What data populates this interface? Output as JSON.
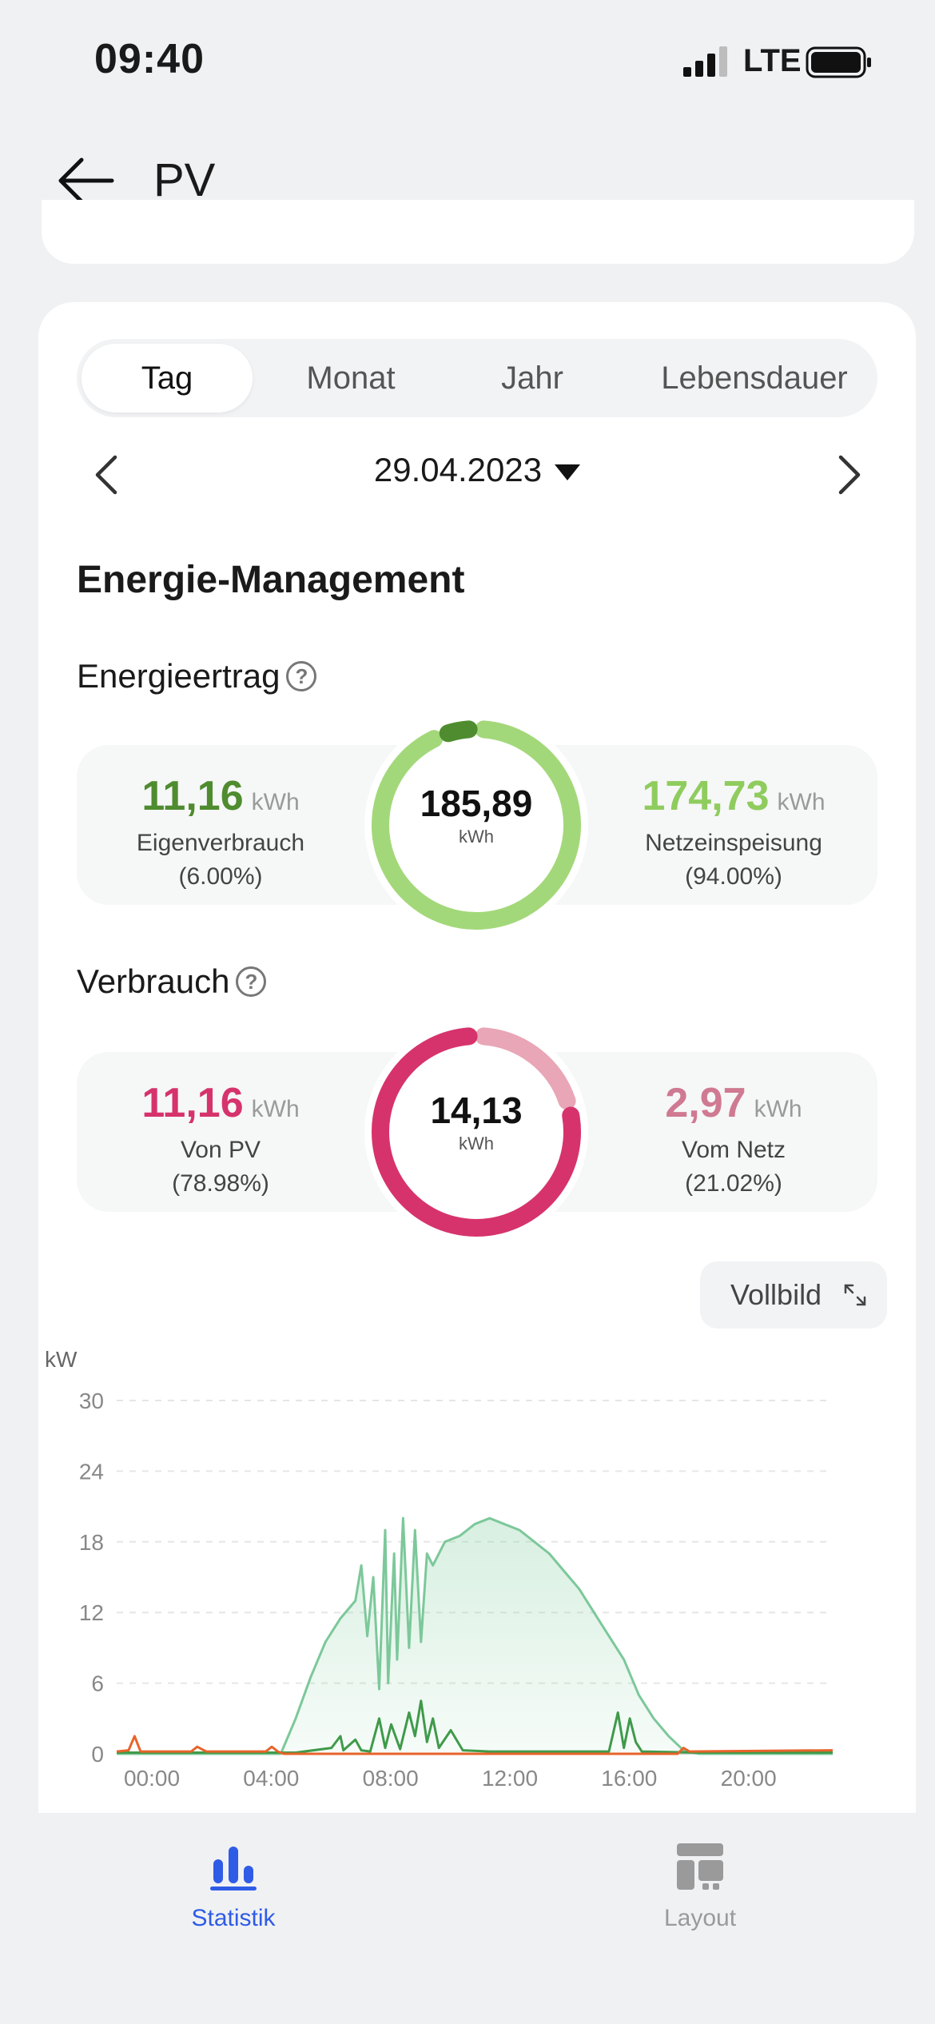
{
  "status_bar": {
    "time": "09:40",
    "network": "LTE"
  },
  "nav": {
    "title": "PV"
  },
  "period_tabs": {
    "items": [
      "Tag",
      "Monat",
      "Jahr",
      "Lebensdauer"
    ],
    "selected": "Tag"
  },
  "date": {
    "value": "29.04.2023"
  },
  "section_title": "Energie-Management",
  "energy_yield": {
    "title": "Energieertrag",
    "left": {
      "value": "11,16",
      "unit": "kWh",
      "label": "Eigenverbrauch",
      "percent": "(6.00%)"
    },
    "total": {
      "value": "185,89",
      "unit": "kWh"
    },
    "right": {
      "value": "174,73",
      "unit": "kWh",
      "label": "Netzeinspeisung",
      "percent": "(94.00%)"
    },
    "share_left": 0.06,
    "colors": {
      "left": "#4f8c2f",
      "right": "#a3d87a"
    }
  },
  "consumption": {
    "title": "Verbrauch",
    "left": {
      "value": "11,16",
      "unit": "kWh",
      "label": "Von PV",
      "percent": "(78.98%)"
    },
    "total": {
      "value": "14,13",
      "unit": "kWh"
    },
    "right": {
      "value": "2,97",
      "unit": "kWh",
      "label": "Vom Netz",
      "percent": "(21.02%)"
    },
    "share_left": 0.7898,
    "colors": {
      "left": "#d6336c",
      "right": "#e8a6b6"
    }
  },
  "fullscreen_label": "Vollbild",
  "chart_data": {
    "type": "area",
    "ylabel": "kW",
    "ylim": [
      0,
      30
    ],
    "yticks": [
      "0",
      "6",
      "12",
      "18",
      "24",
      "30"
    ],
    "xticks": [
      "00:00",
      "04:00",
      "08:00",
      "12:00",
      "16:00",
      "20:00"
    ],
    "xlim_hours": [
      0,
      24
    ],
    "grid": true,
    "series": [
      {
        "color": "#7cc89a",
        "fill": true,
        "points": [
          [
            0,
            0
          ],
          [
            5.5,
            0
          ],
          [
            6.0,
            3
          ],
          [
            6.5,
            6.5
          ],
          [
            7.0,
            9.5
          ],
          [
            7.5,
            11.5
          ],
          [
            8.0,
            13
          ],
          [
            8.2,
            16
          ],
          [
            8.4,
            10
          ],
          [
            8.6,
            15
          ],
          [
            8.8,
            5.5
          ],
          [
            9.0,
            19
          ],
          [
            9.1,
            6
          ],
          [
            9.3,
            17
          ],
          [
            9.4,
            8
          ],
          [
            9.6,
            20
          ],
          [
            9.8,
            9
          ],
          [
            10.0,
            19
          ],
          [
            10.2,
            9.5
          ],
          [
            10.4,
            17
          ],
          [
            10.6,
            16
          ],
          [
            11.0,
            18
          ],
          [
            11.5,
            18.5
          ],
          [
            12.0,
            19.5
          ],
          [
            12.5,
            20
          ],
          [
            13.0,
            19.5
          ],
          [
            13.5,
            19
          ],
          [
            14.0,
            18
          ],
          [
            14.5,
            17
          ],
          [
            15.0,
            15.5
          ],
          [
            15.5,
            14
          ],
          [
            16.0,
            12
          ],
          [
            16.5,
            10
          ],
          [
            17.0,
            8
          ],
          [
            17.5,
            5
          ],
          [
            18.0,
            3
          ],
          [
            18.5,
            1.5
          ],
          [
            19.0,
            0.3
          ],
          [
            19.5,
            0
          ],
          [
            24,
            0
          ]
        ]
      },
      {
        "color": "#3f9a4a",
        "fill": false,
        "points": [
          [
            0,
            0.1
          ],
          [
            6.0,
            0.1
          ],
          [
            7.2,
            0.5
          ],
          [
            7.5,
            1.5
          ],
          [
            7.6,
            0.3
          ],
          [
            8.0,
            1.2
          ],
          [
            8.2,
            0.3
          ],
          [
            8.5,
            0.2
          ],
          [
            8.8,
            3
          ],
          [
            9.0,
            0.5
          ],
          [
            9.2,
            2.5
          ],
          [
            9.5,
            0.4
          ],
          [
            9.8,
            3.5
          ],
          [
            10.0,
            1.5
          ],
          [
            10.2,
            4.5
          ],
          [
            10.4,
            1
          ],
          [
            10.6,
            3
          ],
          [
            10.8,
            0.5
          ],
          [
            11.2,
            2
          ],
          [
            11.6,
            0.3
          ],
          [
            12.5,
            0.2
          ],
          [
            16.5,
            0.2
          ],
          [
            16.8,
            3.5
          ],
          [
            17.0,
            0.5
          ],
          [
            17.2,
            3
          ],
          [
            17.4,
            1
          ],
          [
            17.6,
            0.2
          ],
          [
            19.5,
            0.1
          ],
          [
            24,
            0.1
          ]
        ]
      },
      {
        "color": "#e8632a",
        "fill": false,
        "points": [
          [
            0,
            0.2
          ],
          [
            0.4,
            0.3
          ],
          [
            0.6,
            1.5
          ],
          [
            0.8,
            0.2
          ],
          [
            2.5,
            0.2
          ],
          [
            2.7,
            0.6
          ],
          [
            3.0,
            0.2
          ],
          [
            5.0,
            0.2
          ],
          [
            5.2,
            0.6
          ],
          [
            5.4,
            0.2
          ],
          [
            5.6,
            0
          ],
          [
            18.8,
            0
          ],
          [
            19.0,
            0.5
          ],
          [
            19.2,
            0.2
          ],
          [
            24,
            0.3
          ]
        ]
      }
    ]
  },
  "tabbar": {
    "items": [
      {
        "label": "Statistik",
        "icon": "bar-chart-icon",
        "active": true
      },
      {
        "label": "Layout",
        "icon": "layout-icon",
        "active": false
      }
    ],
    "active_color": "#2f5ce6",
    "inactive_color": "#9a9a9a"
  }
}
